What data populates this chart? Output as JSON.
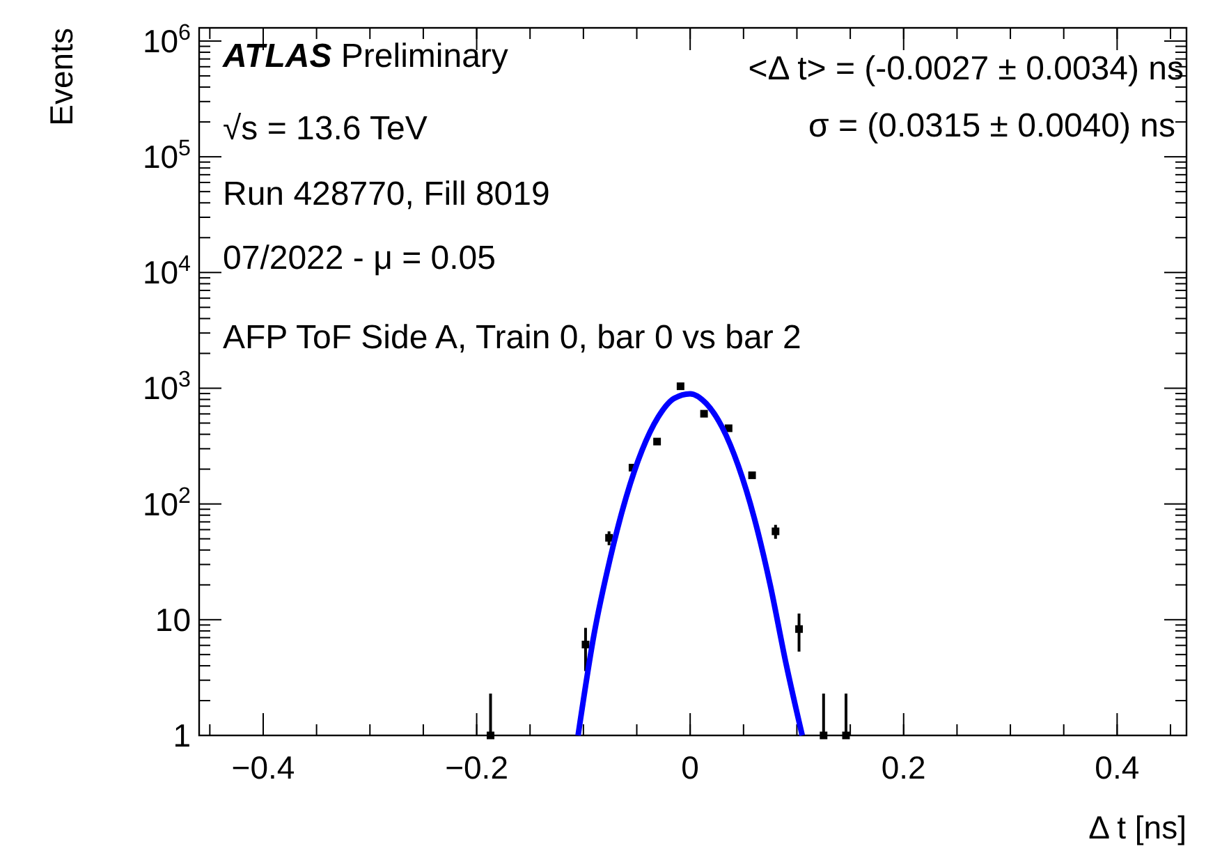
{
  "chart_data": {
    "type": "scatter",
    "xlabel": "Δ t [ns]",
    "ylabel": "Events",
    "log": "y",
    "grid": false,
    "xlim": [
      -0.46,
      0.465
    ],
    "ylim": [
      1,
      1300000
    ],
    "xticks": [
      {
        "value": -0.4,
        "label": "−0.4"
      },
      {
        "value": -0.2,
        "label": "−0.2"
      },
      0,
      0.2,
      0.4
    ],
    "yticks": [
      1,
      10,
      {
        "value": 100,
        "label": "10$^{2}$"
      },
      {
        "value": 1000,
        "label": "10$^{3}$"
      },
      {
        "value": 10000,
        "label": "10$^{4}$"
      },
      {
        "value": 100000,
        "label": "10$^{5}$"
      },
      {
        "value": 1000000,
        "label": "10$^{6}$"
      }
    ],
    "annotations": [
      "ATLAS Preliminary",
      "√s = 13.6 TeV",
      "Run 428770, Fill 8019",
      "07/2022 - μ = 0.05",
      "AFP ToF Side A, Train 0, bar 0 vs bar 2",
      "<Δ t> = (-0.0027 ± 0.0034) ns",
      "σ = (0.0315 ± 0.0040) ns"
    ],
    "series": [
      {
        "color": "#000000",
        "marker": "square",
        "x": [
          -0.187,
          -0.098,
          -0.076,
          -0.054,
          -0.031,
          -0.009,
          0.013,
          0.036,
          0.058,
          0.08,
          0.102,
          0.125,
          0.146
        ],
        "values": [
          1,
          6.1,
          51,
          206,
          346,
          1040,
          602,
          451,
          177,
          58,
          8.3,
          1,
          1
        ],
        "errors": [
          [
            1,
            2.3
          ],
          [
            3.6,
            8.5
          ],
          7,
          null,
          null,
          null,
          null,
          null,
          null,
          8,
          3,
          [
            1,
            2.3
          ],
          [
            1,
            2.3
          ]
        ]
      },
      {
        "type": "line",
        "color": "#0000ff",
        "marker": "none",
        "line_style": "solid",
        "x": [
          -0.105,
          -0.09,
          -0.075,
          -0.06,
          -0.045,
          -0.03,
          -0.015,
          0,
          0.015,
          0.03,
          0.045,
          0.06,
          0.075,
          0.09,
          0.105
        ],
        "values": [
          1,
          7.5,
          33.6,
          114,
          292,
          563,
          818,
          896,
          739,
          460,
          215,
          76,
          20,
          4.1,
          1
        ]
      }
    ]
  }
}
